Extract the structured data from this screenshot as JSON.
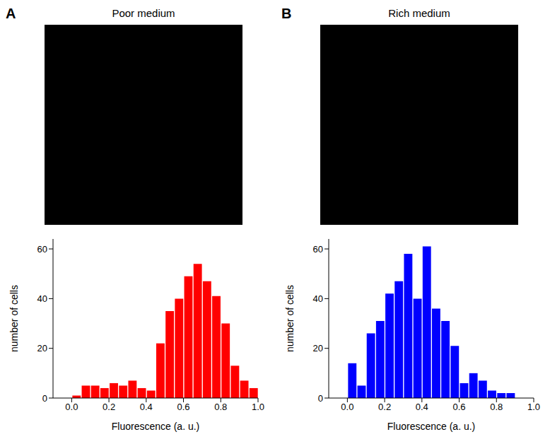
{
  "chart_data": [
    {
      "type": "histogram",
      "annotation": "A",
      "title": "Poor medium",
      "x_label": "Fluorescence (a. u.)",
      "y_label": "number of cells",
      "bins": [
        0.0,
        0.05,
        0.1,
        0.15,
        0.2,
        0.25,
        0.3,
        0.35,
        0.4,
        0.45,
        0.5,
        0.55,
        0.6,
        0.65,
        0.7,
        0.75,
        0.8,
        0.85,
        0.9,
        0.95,
        1.0
      ],
      "values": [
        1,
        5,
        5,
        4,
        6,
        5,
        7,
        4,
        3,
        22,
        35,
        40,
        49,
        54,
        47,
        41,
        30,
        13,
        7,
        4
      ],
      "color": "#ff0000",
      "xlim": [
        -0.1,
        1.0
      ],
      "xticks": [
        {
          "value": 0,
          "label": "0.0"
        },
        {
          "value": 0.2,
          "label": "0.2"
        },
        {
          "value": 0.4,
          "label": "0.4"
        },
        {
          "value": 0.6,
          "label": "0.6"
        },
        {
          "value": 0.8,
          "label": "0.8"
        },
        {
          "value": 1,
          "label": "1.0"
        }
      ],
      "ylim": [
        0,
        64
      ],
      "yticks": [
        0,
        20,
        40,
        60
      ]
    },
    {
      "type": "histogram",
      "annotation": "B",
      "title": "Rich medium",
      "x_label": "Fluorescence (a. u.)",
      "y_label": "number of cells",
      "bins": [
        0.0,
        0.05,
        0.1,
        0.15,
        0.2,
        0.25,
        0.3,
        0.35,
        0.4,
        0.45,
        0.5,
        0.55,
        0.6,
        0.65,
        0.7,
        0.75,
        0.8,
        0.85,
        0.9
      ],
      "values": [
        14,
        5,
        26,
        31,
        42,
        47,
        58,
        40,
        61,
        36,
        31,
        21,
        6,
        10,
        7,
        3,
        2,
        2
      ],
      "color": "#0000ff",
      "xlim": [
        -0.1,
        1.0
      ],
      "xticks": [
        {
          "value": 0,
          "label": "0.0"
        },
        {
          "value": 0.2,
          "label": "0.2"
        },
        {
          "value": 0.4,
          "label": "0.4"
        },
        {
          "value": 0.6,
          "label": "0.6"
        },
        {
          "value": 0.8,
          "label": "0.8"
        },
        {
          "value": 1,
          "label": "1.0"
        }
      ],
      "ylim": [
        0,
        64
      ],
      "yticks": [
        0,
        20,
        40,
        60
      ]
    }
  ]
}
